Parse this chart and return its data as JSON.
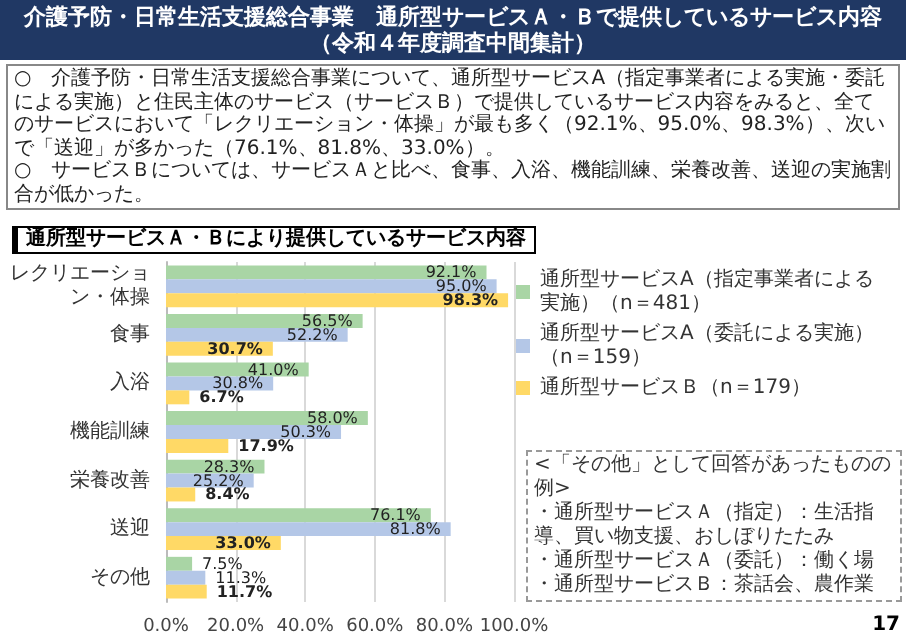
{
  "chart_data": {
    "type": "bar",
    "orientation": "horizontal",
    "title": "介護予防・日常生活支援総合事業　通所型サービスＡ・Ｂで提供しているサービス内容",
    "subtitle": "（令和４年度調査中間集計）",
    "annotations": [
      "○　介護予防・日常生活支援総合事業について、通所型サービスA（指定事業者による実施・委託による実施）と住民主体のサービス（サービスＢ）で提供しているサービス内容をみると、全てのサービスにおいて「レクリエーション・体操」が最も多く（92.1%、95.0%、98.3%）、次いで「送迎」が多かった（76.1%、81.8%、33.0%）。",
      "○　サービスＢについては、サービスＡと比べ、食事、入浴、機能訓練、栄養改善、送迎の実施割合が低かった。",
      "通所型サービスＡ・Ｂにより提供しているサービス内容",
      "<「その他」として回答があったものの例>",
      "・通所型サービスＡ（指定）：生活指導、買い物支援、おしぼりたたみ",
      "・通所型サービスＡ（委託）：働く場",
      "・通所型サービスＢ：茶話会、農作業",
      "17"
    ],
    "categories": [
      "レクリエーション・体操",
      "食事",
      "入浴",
      "機能訓練",
      "栄養改善",
      "送迎",
      "その他"
    ],
    "series": [
      {
        "name": "通所型サービスA（指定事業者による実施）（n＝481）",
        "color": "#a9d5a5",
        "values": [
          92.1,
          56.5,
          41.0,
          58.0,
          28.3,
          76.1,
          7.5
        ],
        "value_labels": [
          "92.1%",
          "56.5%",
          "41.0%",
          "58.0%",
          "28.3%",
          "76.1%",
          "7.5%"
        ]
      },
      {
        "name": "通所型サービスA（委託による実施）（n＝159）",
        "color": "#b4c7e7",
        "values": [
          95.0,
          52.2,
          30.8,
          50.3,
          25.2,
          81.8,
          11.3
        ],
        "value_labels": [
          "95.0%",
          "52.2%",
          "30.8%",
          "50.3%",
          "25.2%",
          "81.8%",
          "11.3%"
        ]
      },
      {
        "name": "通所型サービスＢ（n＝179）",
        "color": "#ffd966",
        "values": [
          98.3,
          30.7,
          6.7,
          17.9,
          8.4,
          33.0,
          11.7
        ],
        "value_labels": [
          "98.3%",
          "30.7%",
          "6.7%",
          "17.9%",
          "8.4%",
          "33.0%",
          "11.7%"
        ]
      }
    ],
    "xlim": [
      0,
      100
    ],
    "xticks": [
      {
        "value": 0,
        "label": "0.0%"
      },
      {
        "value": 20,
        "label": "20.0%"
      },
      {
        "value": 40,
        "label": "40.0%"
      },
      {
        "value": 60,
        "label": "60.0%"
      },
      {
        "value": 80,
        "label": "80.0%"
      },
      {
        "value": 100,
        "label": "100.0%"
      }
    ],
    "grid": "x",
    "legend": "right"
  }
}
